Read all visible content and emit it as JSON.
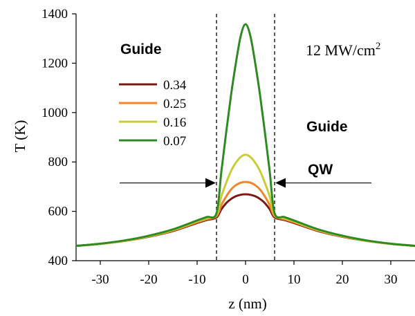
{
  "chart_data": {
    "type": "line",
    "xlabel": "z (nm)",
    "ylabel": "T (K)",
    "xlim": [
      -35,
      35
    ],
    "ylim": [
      400,
      1400
    ],
    "xticks": [
      -30,
      -20,
      -10,
      0,
      10,
      20,
      30
    ],
    "yticks": [
      400,
      600,
      800,
      1000,
      1200,
      1400
    ],
    "grid": false,
    "legend_position": "upper-left",
    "annotation_power_main": "12 MW/cm",
    "annotation_power_sup": "2",
    "annotation_guide_left": "Guide",
    "annotation_guide_right": "Guide",
    "annotation_qw": "QW",
    "qw_boundaries": [
      -6,
      6
    ],
    "arrow_left_from": -26,
    "arrow_right_to": 26,
    "arrow_y": 715,
    "x": [
      -35,
      -30,
      -25,
      -20,
      -15,
      -10,
      -8,
      -6,
      -5,
      -4,
      -3,
      -2,
      -1,
      0,
      1,
      2,
      3,
      4,
      5,
      6,
      8,
      10,
      15,
      20,
      25,
      30,
      35
    ],
    "series": [
      {
        "name": "0.34",
        "color": "#7a1a10",
        "values": [
          460,
          468,
          480,
          497,
          520,
          553,
          565,
          575,
          608,
          633,
          650,
          661,
          667,
          669,
          667,
          661,
          650,
          633,
          608,
          575,
          565,
          553,
          520,
          497,
          480,
          468,
          460
        ]
      },
      {
        "name": "0.25",
        "color": "#f0852a",
        "values": [
          460,
          468,
          480,
          498,
          522,
          556,
          568,
          580,
          625,
          660,
          688,
          706,
          716,
          719,
          716,
          706,
          688,
          660,
          625,
          580,
          568,
          556,
          522,
          498,
          480,
          468,
          460
        ]
      },
      {
        "name": "0.16",
        "color": "#c8cd36",
        "values": [
          460,
          468,
          481,
          499,
          524,
          559,
          572,
          585,
          660,
          715,
          763,
          797,
          820,
          829,
          820,
          797,
          763,
          715,
          660,
          585,
          572,
          559,
          524,
          499,
          481,
          468,
          460
        ]
      },
      {
        "name": "0.07",
        "color": "#2e8a22",
        "values": [
          460,
          469,
          482,
          501,
          527,
          563,
          577,
          592,
          760,
          920,
          1070,
          1200,
          1310,
          1358,
          1310,
          1200,
          1070,
          920,
          760,
          592,
          577,
          563,
          527,
          501,
          482,
          469,
          460
        ]
      }
    ]
  }
}
